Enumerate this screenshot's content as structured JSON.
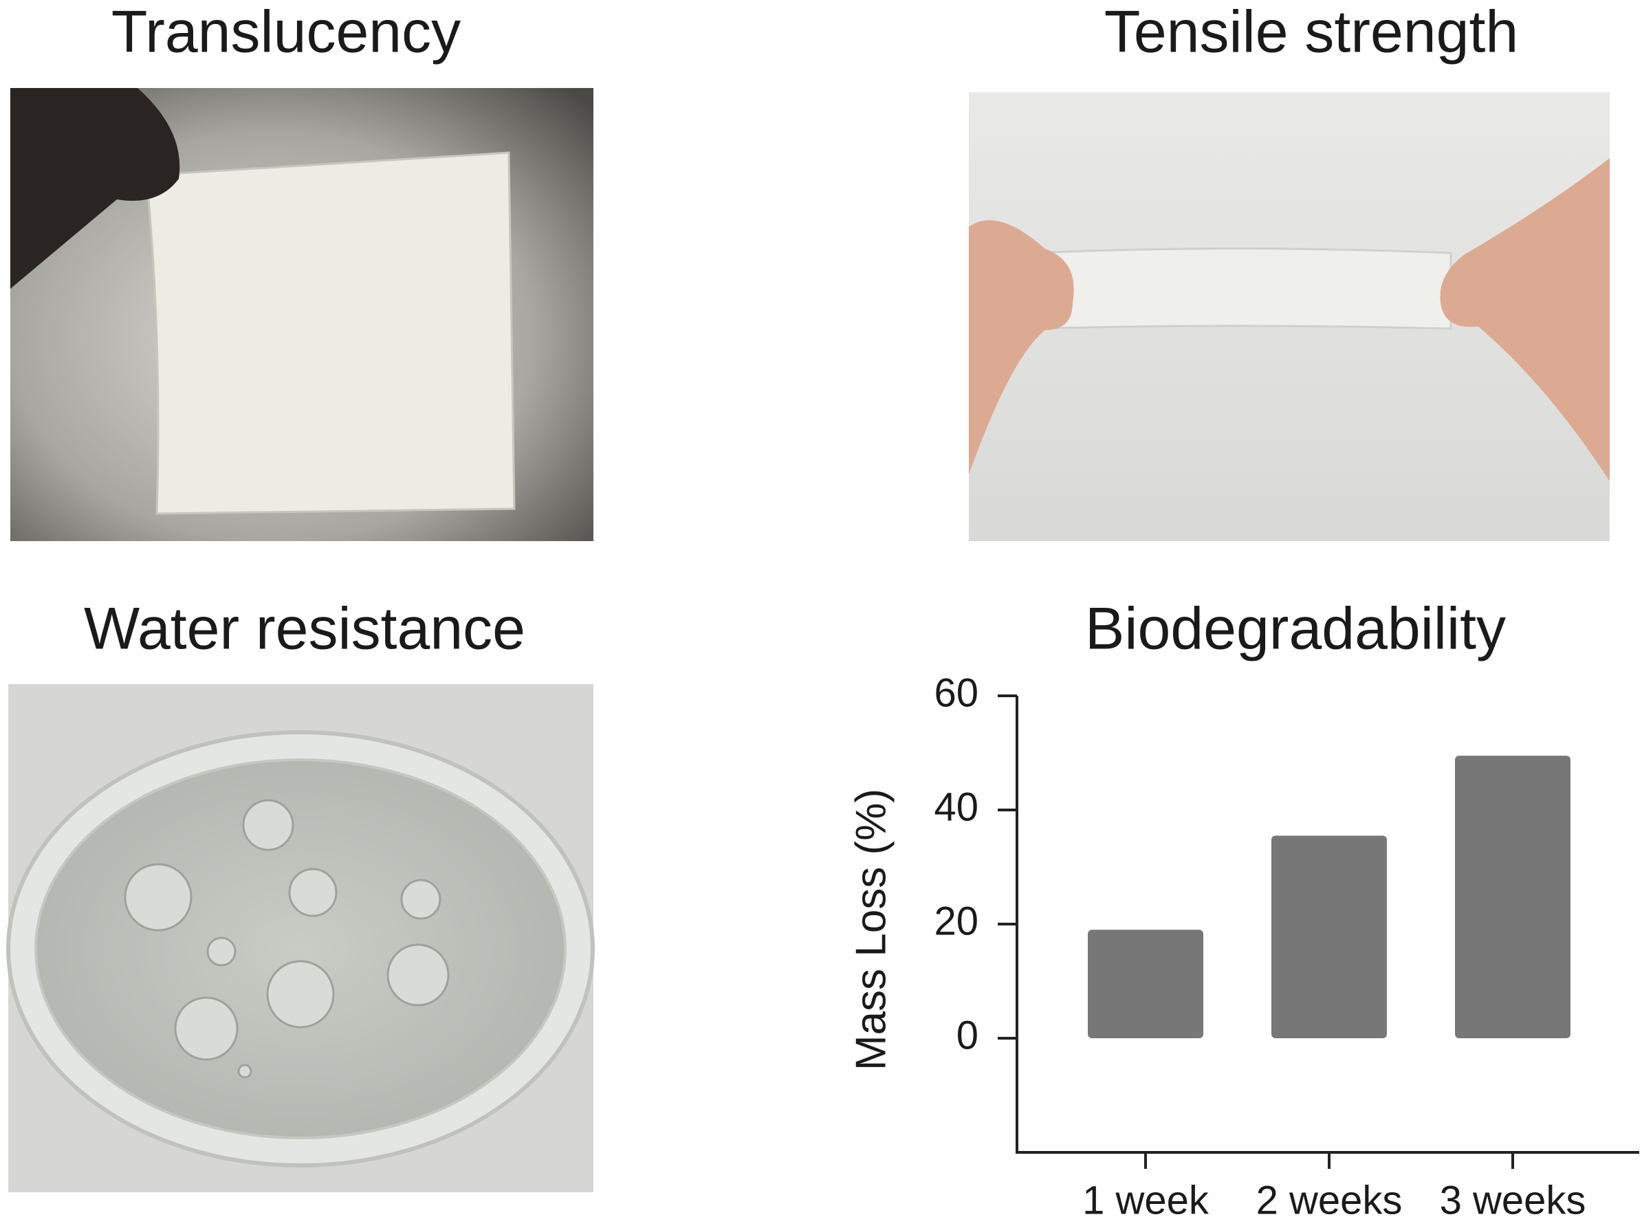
{
  "panels": [
    {
      "title": "Translucency"
    },
    {
      "title": "Tensile strength"
    },
    {
      "title": "Water resistance"
    }
  ],
  "chart_data": {
    "type": "bar",
    "title": "Biodegradability",
    "y_label": "Mass Loss (%)",
    "categories": [
      "1 week",
      "2 weeks",
      "3 weeks"
    ],
    "values": [
      19,
      35.5,
      49.5
    ],
    "color": "#777777",
    "ylim": [
      -20,
      60
    ],
    "yticks": [
      0,
      20,
      40,
      60
    ],
    "grid": false
  }
}
